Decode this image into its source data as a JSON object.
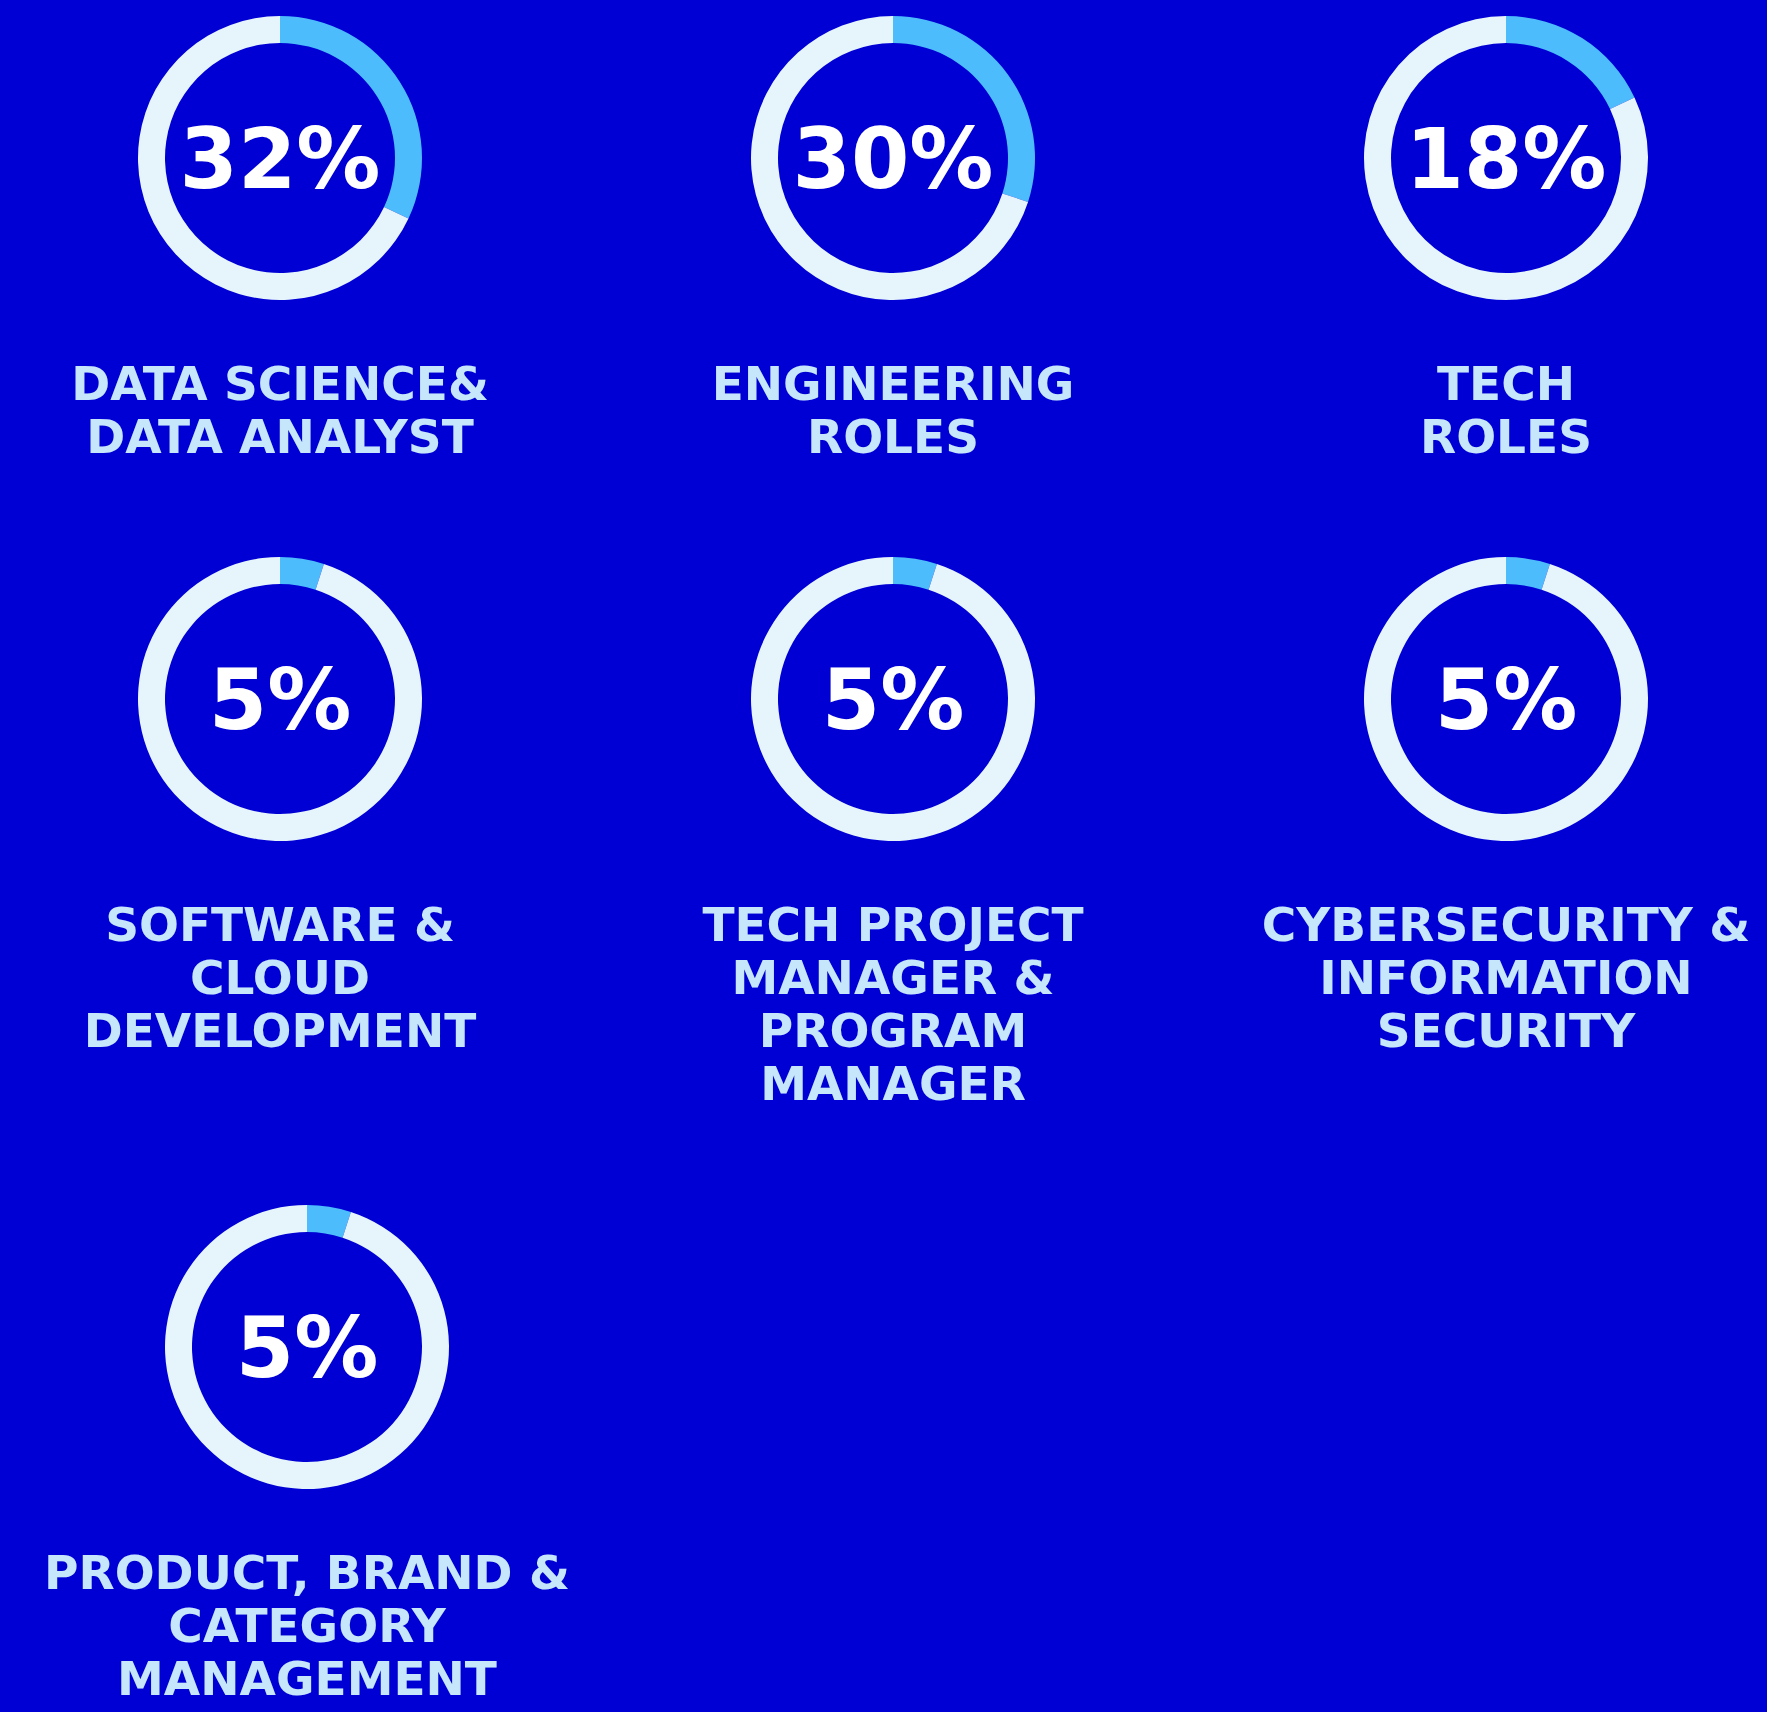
{
  "chart_data": [
    {
      "type": "donut",
      "title": "DATA SCIENCE&\nDATA ANALYST",
      "categories": [
        null,
        null
      ],
      "values": [
        32,
        68
      ],
      "colors": [
        "#4cbcfc",
        "#e6f4fc"
      ],
      "annotations": [
        "32%"
      ]
    },
    {
      "type": "donut",
      "title": "ENGINEERING\nROLES",
      "categories": [
        null,
        null
      ],
      "values": [
        30,
        70
      ],
      "colors": [
        "#4cbcfc",
        "#e6f4fc"
      ],
      "annotations": [
        "30%"
      ]
    },
    {
      "type": "donut",
      "title": "TECH\nROLES",
      "categories": [
        null,
        null
      ],
      "values": [
        18,
        82
      ],
      "colors": [
        "#4cbcfc",
        "#e6f4fc"
      ],
      "annotations": [
        "18%"
      ]
    },
    {
      "type": "donut",
      "title": "SOFTWARE &\nCLOUD\nDEVELOPMENT",
      "categories": [
        null,
        null
      ],
      "values": [
        5,
        95
      ],
      "colors": [
        "#4cbcfc",
        "#e6f4fc"
      ],
      "annotations": [
        "5%"
      ]
    },
    {
      "type": "donut",
      "title": "TECH PROJECT\nMANAGER &\nPROGRAM\nMANAGER",
      "categories": [
        null,
        null
      ],
      "values": [
        5,
        95
      ],
      "colors": [
        "#4cbcfc",
        "#e6f4fc"
      ],
      "annotations": [
        "5%"
      ]
    },
    {
      "type": "donut",
      "title": "CYBERSECURITY &\nINFORMATION\nSECURITY",
      "categories": [
        null,
        null
      ],
      "values": [
        5,
        95
      ],
      "colors": [
        "#4cbcfc",
        "#e6f4fc"
      ],
      "annotations": [
        "5%"
      ]
    },
    {
      "type": "donut",
      "title": "PRODUCT, BRAND &\nCATEGORY\nMANAGEMENT",
      "categories": [
        null,
        null
      ],
      "values": [
        5,
        95
      ],
      "colors": [
        "#4cbcfc",
        "#e6f4fc"
      ],
      "annotations": [
        "5%"
      ]
    }
  ]
}
